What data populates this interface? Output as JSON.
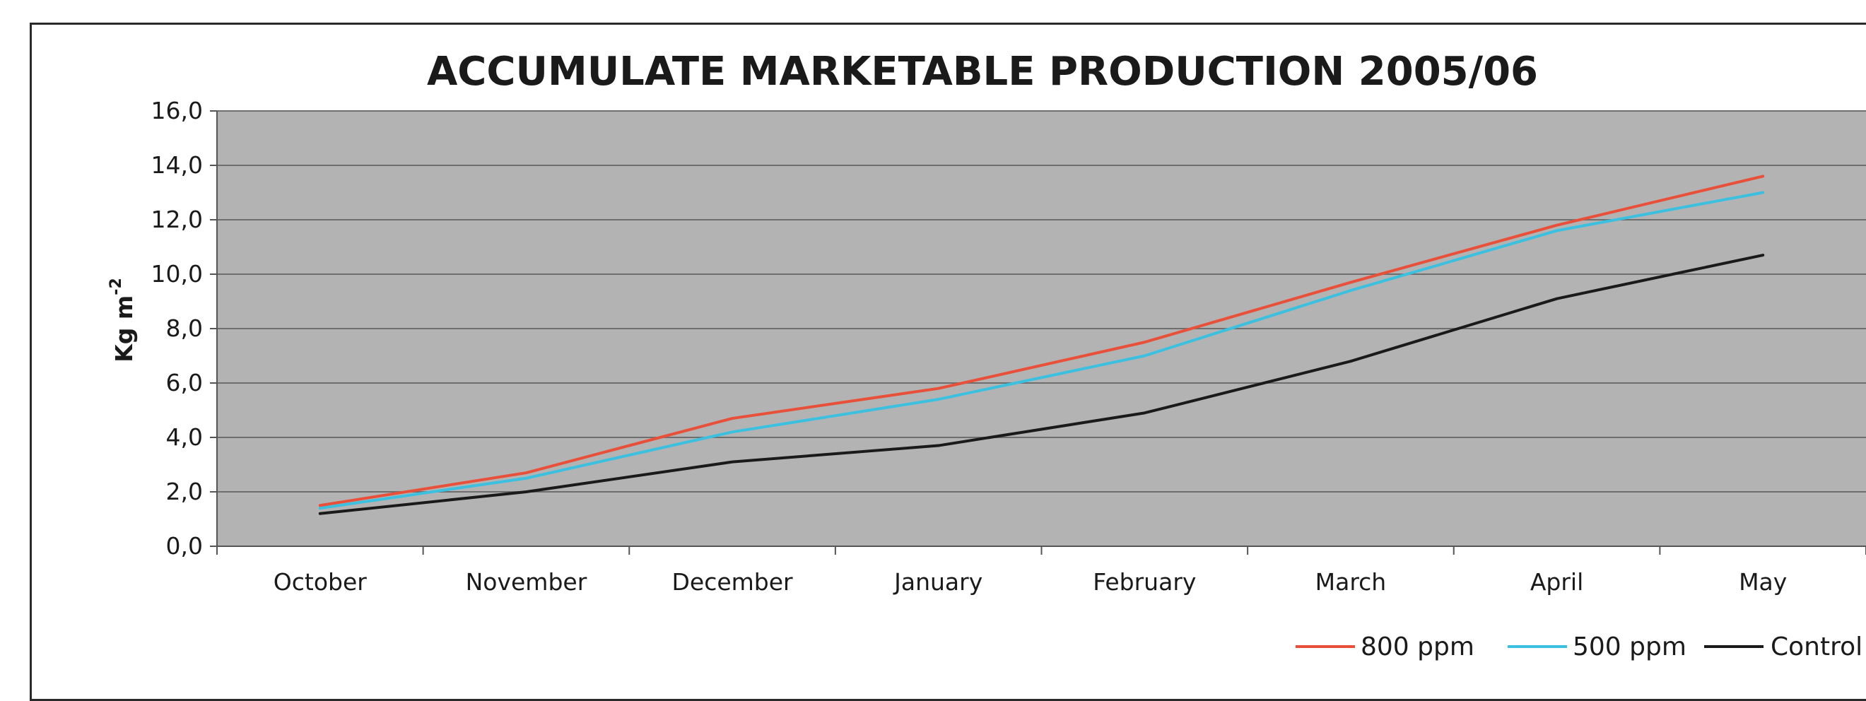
{
  "chart_data": {
    "type": "line",
    "title": "ACCUMULATE MARKETABLE PRODUCTION 2005/06",
    "ylabel": "Kg m",
    "ylabel_sup": "-2",
    "xlabel": "",
    "categories": [
      "October",
      "November",
      "December",
      "January",
      "February",
      "March",
      "April",
      "May"
    ],
    "ylim": [
      0,
      16
    ],
    "yticks": [
      "0,0",
      "2,0",
      "4,0",
      "6,0",
      "8,0",
      "10,0",
      "12,0",
      "14,0",
      "16,0"
    ],
    "grid": true,
    "legend_position": "bottom-right",
    "plot_background": "#b3b3b3",
    "series": [
      {
        "name": "800 ppm",
        "color": "#e8503a",
        "values": [
          1.5,
          2.7,
          4.7,
          5.8,
          7.5,
          9.7,
          11.8,
          13.6
        ]
      },
      {
        "name": "500 ppm",
        "color": "#3cc0e0",
        "values": [
          1.4,
          2.5,
          4.2,
          5.4,
          7.0,
          9.4,
          11.6,
          13.0
        ]
      },
      {
        "name": "Control",
        "color": "#1a1a1a",
        "values": [
          1.2,
          2.0,
          3.1,
          3.7,
          4.9,
          6.8,
          9.1,
          10.7
        ]
      }
    ]
  }
}
